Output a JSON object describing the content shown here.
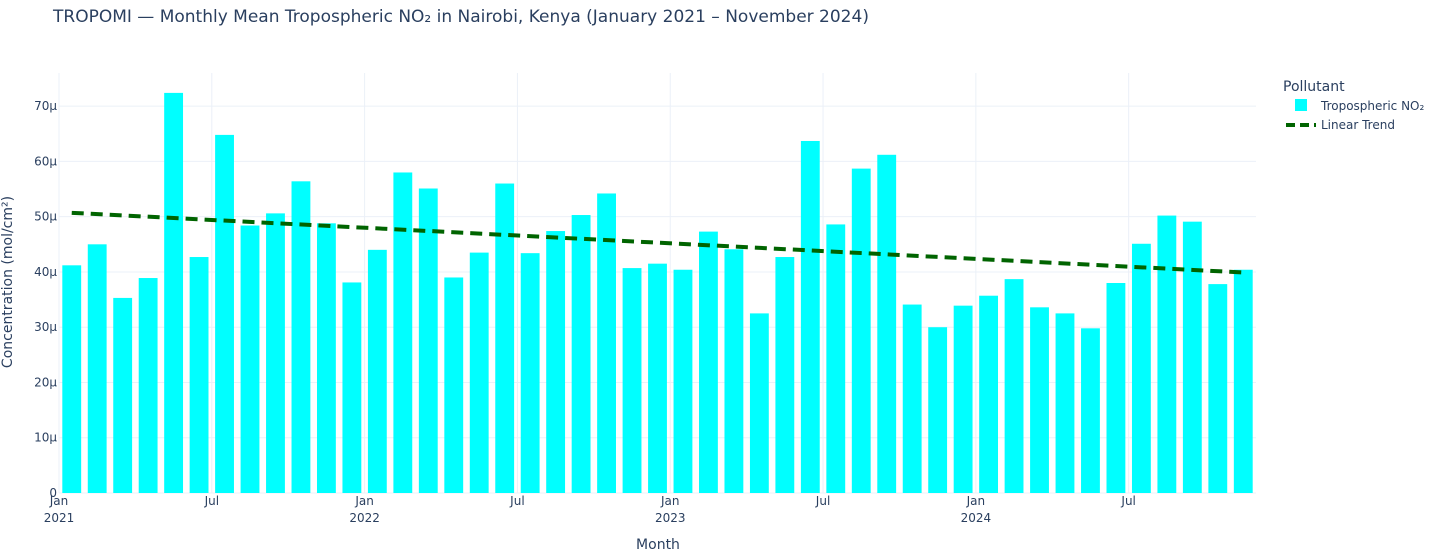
{
  "chart_data": {
    "type": "bar",
    "title": "TROPOMI — Monthly Mean Tropospheric NO₂ in Nairobi, Kenya (January 2021 – November 2024)",
    "xlabel": "Month",
    "ylabel": "Concentration (mol/cm²)",
    "ylim": [
      0,
      7.6e-05
    ],
    "y_ticks": [
      {
        "value": 0,
        "label": "0"
      },
      {
        "value": 1e-05,
        "label": "10μ"
      },
      {
        "value": 2e-05,
        "label": "20μ"
      },
      {
        "value": 3e-05,
        "label": "30μ"
      },
      {
        "value": 4e-05,
        "label": "40μ"
      },
      {
        "value": 5e-05,
        "label": "50μ"
      },
      {
        "value": 6e-05,
        "label": "60μ"
      },
      {
        "value": 7e-05,
        "label": "70μ"
      }
    ],
    "x_ticks": [
      {
        "month": "2021-01",
        "line1": "Jan",
        "line2": "2021"
      },
      {
        "month": "2021-07",
        "line1": "Jul",
        "line2": ""
      },
      {
        "month": "2022-01",
        "line1": "Jan",
        "line2": "2022"
      },
      {
        "month": "2022-07",
        "line1": "Jul",
        "line2": ""
      },
      {
        "month": "2023-01",
        "line1": "Jan",
        "line2": "2023"
      },
      {
        "month": "2023-07",
        "line1": "Jul",
        "line2": ""
      },
      {
        "month": "2024-01",
        "line1": "Jan",
        "line2": "2024"
      },
      {
        "month": "2024-07",
        "line1": "Jul",
        "line2": ""
      }
    ],
    "categories": [
      "2021-01",
      "2021-02",
      "2021-03",
      "2021-04",
      "2021-05",
      "2021-06",
      "2021-07",
      "2021-08",
      "2021-09",
      "2021-10",
      "2021-11",
      "2021-12",
      "2022-01",
      "2022-02",
      "2022-03",
      "2022-04",
      "2022-05",
      "2022-06",
      "2022-07",
      "2022-08",
      "2022-09",
      "2022-10",
      "2022-11",
      "2022-12",
      "2023-01",
      "2023-02",
      "2023-03",
      "2023-04",
      "2023-05",
      "2023-06",
      "2023-07",
      "2023-08",
      "2023-09",
      "2023-10",
      "2023-11",
      "2023-12",
      "2024-01",
      "2024-02",
      "2024-03",
      "2024-04",
      "2024-05",
      "2024-06",
      "2024-07",
      "2024-08",
      "2024-09",
      "2024-10",
      "2024-11"
    ],
    "series": [
      {
        "name": "Tropospheric NO₂",
        "kind": "bar",
        "color": "#00ffff",
        "values": [
          4.12e-05,
          4.5e-05,
          3.53e-05,
          3.89e-05,
          7.24e-05,
          4.27e-05,
          6.48e-05,
          4.84e-05,
          5.06e-05,
          5.64e-05,
          4.88e-05,
          3.81e-05,
          4.4e-05,
          5.8e-05,
          5.51e-05,
          3.9e-05,
          4.35e-05,
          5.6e-05,
          4.34e-05,
          4.74e-05,
          5.03e-05,
          5.42e-05,
          4.07e-05,
          4.15e-05,
          4.04e-05,
          4.73e-05,
          4.41e-05,
          3.25e-05,
          4.27e-05,
          6.37e-05,
          4.86e-05,
          5.87e-05,
          6.12e-05,
          3.41e-05,
          3e-05,
          3.39e-05,
          3.57e-05,
          3.87e-05,
          3.36e-05,
          3.25e-05,
          2.98e-05,
          3.8e-05,
          4.51e-05,
          5.02e-05,
          4.91e-05,
          3.78e-05,
          4.04e-05
        ]
      },
      {
        "name": "Linear Trend",
        "kind": "line",
        "color": "#006400",
        "dash": "dash",
        "start_value": 5.07e-05,
        "end_value": 3.99e-05
      }
    ],
    "legend": {
      "title": "Pollutant",
      "placement": "top-right, outside plot"
    },
    "grid": true
  }
}
